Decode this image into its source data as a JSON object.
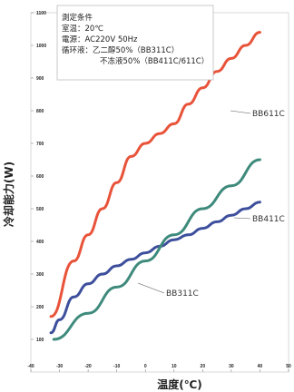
{
  "chart_data": {
    "type": "line",
    "xlabel": "温度(℃)",
    "ylabel": "冷却能力(W)",
    "xlim": [
      -40,
      50
    ],
    "ylim": [
      0,
      1100
    ],
    "xticks": [
      -40,
      -30,
      -20,
      -10,
      0,
      10,
      20,
      30,
      40,
      50
    ],
    "yticks": [
      100,
      200,
      300,
      400,
      500,
      600,
      700,
      800,
      900,
      1000,
      1100
    ],
    "grid": false,
    "conditions": {
      "title": "測定条件",
      "lines": [
        "室温：20℃",
        "電源：AC220V  50Hz",
        "循环液：乙二醇50%（BB311C）",
        "不冻液50%（BB411C/611C）"
      ]
    },
    "series": [
      {
        "name": "BB611C",
        "color": "#e8533a",
        "x": [
          -33,
          -25,
          -20,
          -15,
          -10,
          -5,
          0,
          5,
          10,
          15,
          20,
          25,
          30,
          35,
          40
        ],
        "y": [
          170,
          340,
          420,
          500,
          580,
          660,
          700,
          730,
          760,
          820,
          870,
          920,
          960,
          1000,
          1040
        ]
      },
      {
        "name": "BB411C",
        "color": "#3d4f9c",
        "x": [
          -33,
          -30,
          -25,
          -20,
          -15,
          -10,
          -5,
          0,
          5,
          10,
          15,
          20,
          25,
          30,
          35,
          40
        ],
        "y": [
          120,
          160,
          230,
          270,
          300,
          325,
          345,
          365,
          385,
          405,
          420,
          440,
          460,
          480,
          500,
          520
        ]
      },
      {
        "name": "BB311C",
        "color": "#3e8a7c",
        "x": [
          -32,
          -20,
          -10,
          0,
          10,
          20,
          30,
          40
        ],
        "y": [
          100,
          180,
          260,
          340,
          420,
          500,
          570,
          650
        ]
      }
    ],
    "annotations": [
      {
        "series": "BB611C",
        "label": "BB611C",
        "x": 40,
        "y": 1040
      },
      {
        "series": "BB411C",
        "label": "BB411C",
        "x": 40,
        "y": 520
      },
      {
        "series": "BB311C",
        "label": "BB311C",
        "x": -15,
        "y": 190
      }
    ]
  }
}
